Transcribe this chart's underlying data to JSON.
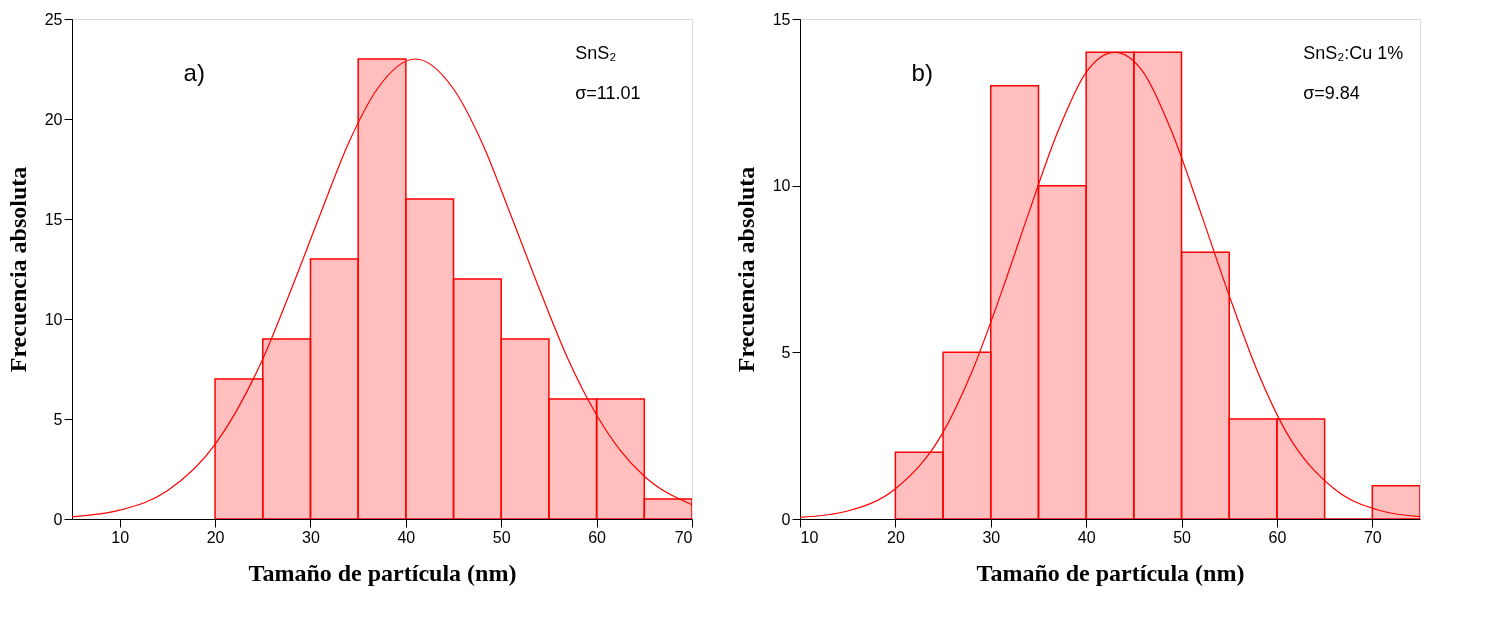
{
  "chart_data": [
    {
      "type": "histogram",
      "xlabel": "Tamaño de partícula (nm)",
      "ylabel": "Frecuencia absoluta",
      "xlim": [
        5,
        70
      ],
      "xticks": [
        10,
        20,
        30,
        40,
        50,
        60,
        70
      ],
      "ylim": [
        0,
        25
      ],
      "yticks": [
        0,
        5,
        10,
        15,
        20,
        25
      ],
      "grid": false,
      "annotations": [
        "a)",
        "SnS₂",
        "σ=11.01"
      ],
      "series": [
        {
          "color": "#ff0000",
          "bins": [
            20,
            25,
            30,
            35,
            40,
            45,
            50,
            55,
            60,
            65,
            70
          ],
          "values": [
            7,
            9,
            13,
            23,
            16,
            12,
            9,
            6,
            6,
            1
          ]
        },
        {
          "type": "line",
          "color": "#ff0000",
          "x": [
            5,
            10,
            15,
            20,
            25,
            28,
            31,
            34,
            37,
            41,
            45,
            48,
            51,
            54,
            57,
            60,
            62.5,
            65,
            70
          ],
          "values": [
            0.11,
            0.44,
            1.41,
            3.73,
            8.0,
            11.5,
            15.2,
            18.8,
            21.5,
            23,
            21.5,
            18.8,
            15.2,
            11.5,
            8.0,
            5.2,
            3.42,
            2.14,
            0.71
          ]
        }
      ]
    },
    {
      "type": "histogram",
      "xlabel": "Tamaño de partícula (nm)",
      "ylabel": "Frecuencia absoluta",
      "xlim": [
        10,
        75
      ],
      "xticks": [
        10,
        20,
        30,
        40,
        50,
        60,
        70
      ],
      "ylim": [
        0,
        15
      ],
      "yticks": [
        0,
        5,
        10,
        15
      ],
      "grid": false,
      "annotations": [
        "b)",
        "SnS₂:Cu 1%",
        "σ=9.84"
      ],
      "series": [
        {
          "color": "#ff0000",
          "bins": [
            20,
            25,
            30,
            35,
            40,
            45,
            50,
            55,
            60,
            65,
            70,
            75
          ],
          "values": [
            2,
            5,
            13,
            10,
            14,
            14,
            8,
            3,
            3,
            0,
            1
          ]
        },
        {
          "type": "line",
          "color": "#ff0000",
          "x": [
            10,
            15,
            20,
            25,
            28,
            31,
            34,
            37,
            40,
            43,
            46,
            49,
            52,
            55,
            58,
            61,
            66,
            71,
            75
          ],
          "values": [
            0.05,
            0.24,
            0.91,
            2.6,
            4.4,
            6.7,
            9.2,
            11.6,
            13.4,
            14,
            13.4,
            11.6,
            9.2,
            6.7,
            4.4,
            2.6,
            0.91,
            0.24,
            0.07
          ]
        }
      ]
    }
  ]
}
